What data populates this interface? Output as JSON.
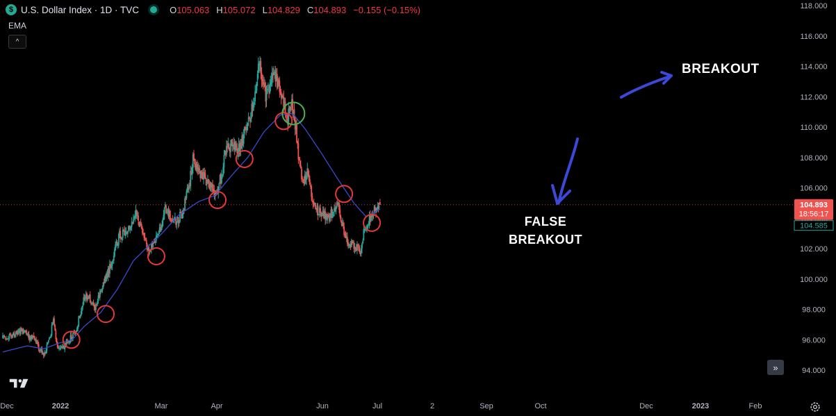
{
  "header": {
    "symbol_badge": "$",
    "title": "U.S. Dollar Index · 1D · TVC",
    "ohlc": [
      {
        "key": "O",
        "value": "105.063"
      },
      {
        "key": "H",
        "value": "105.072"
      },
      {
        "key": "L",
        "value": "104.829"
      },
      {
        "key": "C",
        "value": "104.893"
      }
    ],
    "change": "−0.155 (−0.15%)"
  },
  "indicator": {
    "label": "EMA"
  },
  "controls": {
    "collapse_glyph": "^",
    "scroll_glyph": "»",
    "logo_icon": "tradingview-logo-icon",
    "settings_icon": "gear-icon"
  },
  "price_labels": {
    "last_price": "104.893",
    "countdown": "18:56:17",
    "ema_value": "104.585"
  },
  "annotations": {
    "breakout": "BREAKOUT",
    "false_breakout_line1": "FALSE",
    "false_breakout_line2": "BREAKOUT"
  },
  "colors": {
    "background": "#000000",
    "up": "#26a69a",
    "down": "#ef5350",
    "ema": "#3a4ad0",
    "circle_red": "#e53935",
    "circle_green": "#4caf50",
    "arrow": "#3c48d8"
  },
  "chart_data": {
    "type": "candlestick",
    "title": "U.S. Dollar Index · 1D · TVC",
    "ylim": [
      93.3,
      118.3
    ],
    "y_ticks": [
      "118.000",
      "116.000",
      "114.000",
      "112.000",
      "110.000",
      "108.000",
      "106.000",
      "104.000",
      "102.000",
      "100.000",
      "98.000",
      "96.000",
      "94.000"
    ],
    "x_ticks": [
      "Dec",
      "2022",
      "Mar",
      "Apr",
      "Jun",
      "Jul",
      "2",
      "Sep",
      "Oct",
      "Dec",
      "2023",
      "Feb"
    ],
    "grid": false,
    "price_anchors": [
      {
        "d": 0,
        "v": 96.1
      },
      {
        "d": 22,
        "v": 96.6
      },
      {
        "d": 38,
        "v": 96.0
      },
      {
        "d": 50,
        "v": 95.0
      },
      {
        "d": 58,
        "v": 96.3
      },
      {
        "d": 62,
        "v": 97.2
      },
      {
        "d": 67,
        "v": 95.6
      },
      {
        "d": 72,
        "v": 95.3
      },
      {
        "d": 80,
        "v": 96.0
      },
      {
        "d": 89,
        "v": 96.4
      },
      {
        "d": 96,
        "v": 98.1
      },
      {
        "d": 100,
        "v": 98.9
      },
      {
        "d": 106,
        "v": 98.7
      },
      {
        "d": 113,
        "v": 98.2
      },
      {
        "d": 120,
        "v": 99.2
      },
      {
        "d": 130,
        "v": 100.6
      },
      {
        "d": 143,
        "v": 102.9
      },
      {
        "d": 155,
        "v": 103.2
      },
      {
        "d": 163,
        "v": 104.3
      },
      {
        "d": 172,
        "v": 102.9
      },
      {
        "d": 178,
        "v": 101.8
      },
      {
        "d": 186,
        "v": 102.4
      },
      {
        "d": 194,
        "v": 103.5
      },
      {
        "d": 198,
        "v": 104.7
      },
      {
        "d": 207,
        "v": 103.9
      },
      {
        "d": 214,
        "v": 103.8
      },
      {
        "d": 220,
        "v": 104.4
      },
      {
        "d": 228,
        "v": 106.1
      },
      {
        "d": 233,
        "v": 107.8
      },
      {
        "d": 241,
        "v": 107.0
      },
      {
        "d": 248,
        "v": 106.6
      },
      {
        "d": 253,
        "v": 106.3
      },
      {
        "d": 260,
        "v": 105.5
      },
      {
        "d": 268,
        "v": 106.8
      },
      {
        "d": 273,
        "v": 108.5
      },
      {
        "d": 281,
        "v": 108.8
      },
      {
        "d": 290,
        "v": 108.5
      },
      {
        "d": 295,
        "v": 109.5
      },
      {
        "d": 300,
        "v": 110.2
      },
      {
        "d": 307,
        "v": 111.5
      },
      {
        "d": 314,
        "v": 114.3
      },
      {
        "d": 322,
        "v": 112.0
      },
      {
        "d": 330,
        "v": 113.5
      },
      {
        "d": 338,
        "v": 112.8
      },
      {
        "d": 342,
        "v": 111.8
      },
      {
        "d": 349,
        "v": 110.6
      },
      {
        "d": 353,
        "v": 111.8
      },
      {
        "d": 357,
        "v": 110.7
      },
      {
        "d": 362,
        "v": 108.2
      },
      {
        "d": 367,
        "v": 106.4
      },
      {
        "d": 373,
        "v": 106.9
      },
      {
        "d": 379,
        "v": 105.2
      },
      {
        "d": 385,
        "v": 104.6
      },
      {
        "d": 391,
        "v": 104.3
      },
      {
        "d": 398,
        "v": 104.0
      },
      {
        "d": 405,
        "v": 104.5
      },
      {
        "d": 411,
        "v": 104.8
      },
      {
        "d": 416,
        "v": 103.6
      },
      {
        "d": 422,
        "v": 102.5
      },
      {
        "d": 428,
        "v": 102.2
      },
      {
        "d": 434,
        "v": 102.1
      },
      {
        "d": 438,
        "v": 101.6
      },
      {
        "d": 442,
        "v": 103.2
      },
      {
        "d": 447,
        "v": 103.8
      },
      {
        "d": 454,
        "v": 104.4
      },
      {
        "d": 462,
        "v": 104.9
      }
    ],
    "series": [
      {
        "name": "EMA",
        "type": "line",
        "values": [
          {
            "d": 0,
            "v": 95.2
          },
          {
            "d": 30,
            "v": 95.6
          },
          {
            "d": 50,
            "v": 95.4
          },
          {
            "d": 70,
            "v": 95.8
          },
          {
            "d": 85,
            "v": 96.0
          },
          {
            "d": 100,
            "v": 96.9
          },
          {
            "d": 120,
            "v": 97.8
          },
          {
            "d": 140,
            "v": 99.3
          },
          {
            "d": 160,
            "v": 101.2
          },
          {
            "d": 175,
            "v": 102.0
          },
          {
            "d": 195,
            "v": 103.0
          },
          {
            "d": 215,
            "v": 104.2
          },
          {
            "d": 240,
            "v": 105.1
          },
          {
            "d": 260,
            "v": 105.5
          },
          {
            "d": 280,
            "v": 106.8
          },
          {
            "d": 300,
            "v": 108.0
          },
          {
            "d": 320,
            "v": 109.7
          },
          {
            "d": 340,
            "v": 110.8
          },
          {
            "d": 355,
            "v": 110.9
          },
          {
            "d": 370,
            "v": 109.9
          },
          {
            "d": 390,
            "v": 108.3
          },
          {
            "d": 410,
            "v": 106.6
          },
          {
            "d": 430,
            "v": 105.0
          },
          {
            "d": 445,
            "v": 104.1
          },
          {
            "d": 462,
            "v": 104.6
          }
        ]
      }
    ],
    "marked_touches": [
      {
        "d": 84,
        "v": 96.0,
        "color": "red"
      },
      {
        "d": 126,
        "v": 97.7,
        "color": "red"
      },
      {
        "d": 188,
        "v": 101.5,
        "color": "red"
      },
      {
        "d": 263,
        "v": 105.2,
        "color": "red"
      },
      {
        "d": 296,
        "v": 107.9,
        "color": "red"
      },
      {
        "d": 344,
        "v": 110.4,
        "color": "red"
      },
      {
        "d": 356,
        "v": 110.9,
        "color": "green"
      },
      {
        "d": 418,
        "v": 105.6,
        "color": "red"
      },
      {
        "d": 452,
        "v": 103.7,
        "color": "red"
      }
    ],
    "last_price_line": 104.893
  }
}
